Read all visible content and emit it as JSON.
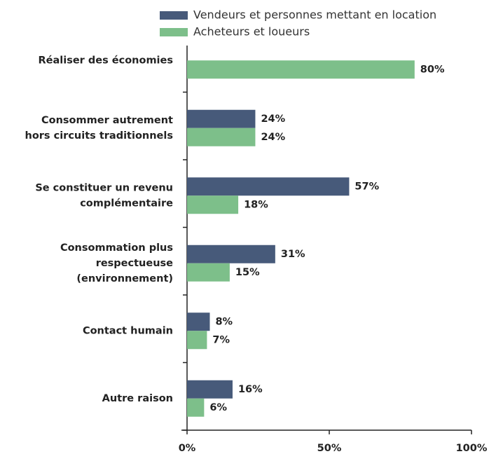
{
  "chart_data": {
    "type": "bar",
    "orientation": "horizontal",
    "categories": [
      "Réaliser des économies",
      "Consommer autrement\nhors circuits traditionnels",
      "Se constituer un revenu\ncomplémentaire",
      "Consommation plus\nrespectueuse\n(environnement)",
      "Contact humain",
      "Autre raison"
    ],
    "series": [
      {
        "name": "Vendeurs et personnes mettant en location",
        "color": "#475a7a",
        "values": [
          null,
          24,
          57,
          31,
          8,
          16
        ],
        "value_labels": [
          null,
          "24%",
          "57%",
          "31%",
          "8%",
          "16%"
        ]
      },
      {
        "name": "Acheteurs et loueurs",
        "color": "#7dbf8a",
        "values": [
          80,
          24,
          18,
          15,
          7,
          6
        ],
        "value_labels": [
          "80%",
          "24%",
          "18%",
          "15%",
          "7%",
          "6%"
        ]
      }
    ],
    "xlim": [
      0,
      100
    ],
    "xticks": [
      {
        "value": 0,
        "label": "0%"
      },
      {
        "value": 50,
        "label": "50%"
      },
      {
        "value": 100,
        "label": "100%"
      }
    ],
    "legend": "top"
  }
}
